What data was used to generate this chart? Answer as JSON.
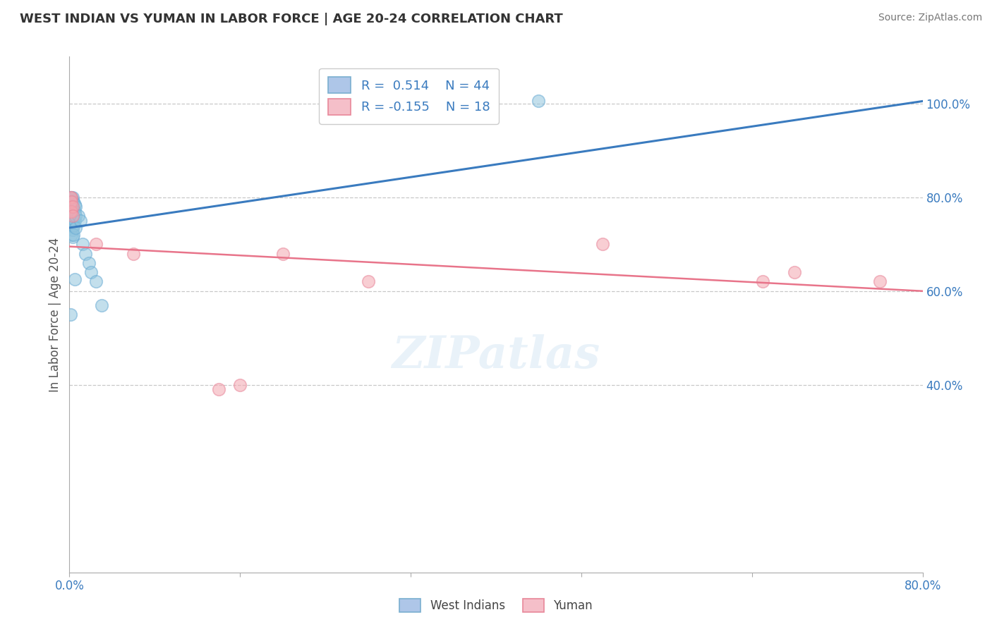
{
  "title": "WEST INDIAN VS YUMAN IN LABOR FORCE | AGE 20-24 CORRELATION CHART",
  "source": "Source: ZipAtlas.com",
  "ylabel": "In Labor Force | Age 20-24",
  "xlim": [
    0.0,
    0.8
  ],
  "ylim": [
    0.0,
    1.1
  ],
  "xticks": [
    0.0,
    0.16,
    0.32,
    0.48,
    0.64,
    0.8
  ],
  "xtick_labels": [
    "0.0%",
    "",
    "",
    "",
    "",
    "80.0%"
  ],
  "yticks_right": [
    0.4,
    0.6,
    0.8,
    1.0
  ],
  "ytick_labels_right": [
    "40.0%",
    "60.0%",
    "80.0%",
    "100.0%"
  ],
  "background_color": "#ffffff",
  "grid_color": "#c8c8c8",
  "watermark": "ZIPatlas",
  "blue_color": "#92c5de",
  "pink_color": "#f4a6b0",
  "blue_line_color": "#3a7bbf",
  "pink_line_color": "#e8748a",
  "legend_R_blue": "0.514",
  "legend_N_blue": "44",
  "legend_R_pink": "-0.155",
  "legend_N_pink": "18",
  "west_indian_x": [
    0.001,
    0.001,
    0.001,
    0.001,
    0.001,
    0.001,
    0.002,
    0.002,
    0.002,
    0.002,
    0.002,
    0.002,
    0.002,
    0.002,
    0.002,
    0.003,
    0.003,
    0.003,
    0.003,
    0.003,
    0.003,
    0.003,
    0.004,
    0.004,
    0.004,
    0.004,
    0.004,
    0.005,
    0.005,
    0.005,
    0.005,
    0.006,
    0.006,
    0.006,
    0.008,
    0.01,
    0.012,
    0.015,
    0.018,
    0.02,
    0.025,
    0.03,
    0.44,
    0.001
  ],
  "west_indian_y": [
    0.8,
    0.795,
    0.785,
    0.775,
    0.77,
    0.76,
    0.8,
    0.795,
    0.78,
    0.775,
    0.765,
    0.755,
    0.745,
    0.735,
    0.72,
    0.8,
    0.79,
    0.775,
    0.765,
    0.75,
    0.73,
    0.715,
    0.79,
    0.775,
    0.76,
    0.74,
    0.72,
    0.785,
    0.77,
    0.75,
    0.625,
    0.78,
    0.76,
    0.735,
    0.76,
    0.75,
    0.7,
    0.68,
    0.66,
    0.64,
    0.62,
    0.57,
    1.005,
    0.55
  ],
  "yuman_x": [
    0.001,
    0.001,
    0.001,
    0.002,
    0.002,
    0.002,
    0.003,
    0.003,
    0.025,
    0.06,
    0.14,
    0.16,
    0.2,
    0.28,
    0.5,
    0.65,
    0.68,
    0.76
  ],
  "yuman_y": [
    0.8,
    0.78,
    0.77,
    0.8,
    0.79,
    0.77,
    0.78,
    0.76,
    0.7,
    0.68,
    0.39,
    0.4,
    0.68,
    0.62,
    0.7,
    0.62,
    0.64,
    0.62
  ],
  "blue_trend_x0": 0.0,
  "blue_trend_y0": 0.735,
  "blue_trend_x1": 0.8,
  "blue_trend_y1": 1.005,
  "pink_trend_x0": 0.0,
  "pink_trend_y0": 0.695,
  "pink_trend_x1": 0.8,
  "pink_trend_y1": 0.6
}
